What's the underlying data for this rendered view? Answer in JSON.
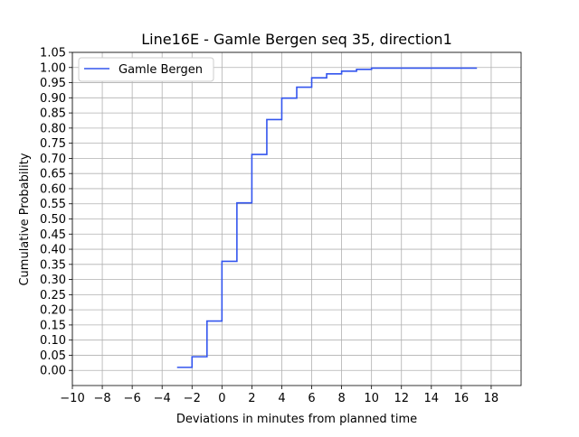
{
  "chart_data": {
    "type": "line",
    "step": "post",
    "title": "Line16E - Gamle Bergen seq 35, direction1",
    "xlabel": "Deviations in minutes from planned time",
    "ylabel": "Cumulative Probability",
    "xlim": [
      -10,
      20
    ],
    "ylim": [
      -0.05,
      1.05
    ],
    "x_ticks": [
      -10,
      -8,
      -6,
      -4,
      -2,
      0,
      2,
      4,
      6,
      8,
      10,
      12,
      14,
      16,
      18
    ],
    "x_tick_labels": [
      "−10",
      "−8",
      "−6",
      "−4",
      "−2",
      "0",
      "2",
      "4",
      "6",
      "8",
      "10",
      "12",
      "14",
      "16",
      "18"
    ],
    "y_ticks": [
      0,
      0.05,
      0.1,
      0.15,
      0.2,
      0.25,
      0.3,
      0.35,
      0.4,
      0.45,
      0.5,
      0.55,
      0.6,
      0.65,
      0.7,
      0.75,
      0.8,
      0.85,
      0.9,
      0.95,
      1.0,
      1.05
    ],
    "y_tick_labels": [
      "0.00",
      "0.05",
      "0.10",
      "0.15",
      "0.20",
      "0.25",
      "0.30",
      "0.35",
      "0.40",
      "0.45",
      "0.50",
      "0.55",
      "0.60",
      "0.65",
      "0.70",
      "0.75",
      "0.80",
      "0.85",
      "0.90",
      "0.95",
      "1.00",
      "1.05"
    ],
    "grid": true,
    "legend": "upper-left",
    "series": [
      {
        "name": "Gamle Bergen",
        "color": "#3355ee",
        "x": [
          -3,
          -2,
          -1,
          0,
          1,
          2,
          3,
          4,
          5,
          6,
          7,
          8,
          9,
          10,
          17
        ],
        "y": [
          0.01,
          0.045,
          0.163,
          0.36,
          0.553,
          0.713,
          0.828,
          0.899,
          0.935,
          0.966,
          0.979,
          0.988,
          0.994,
          0.998,
          1.0
        ]
      }
    ]
  }
}
